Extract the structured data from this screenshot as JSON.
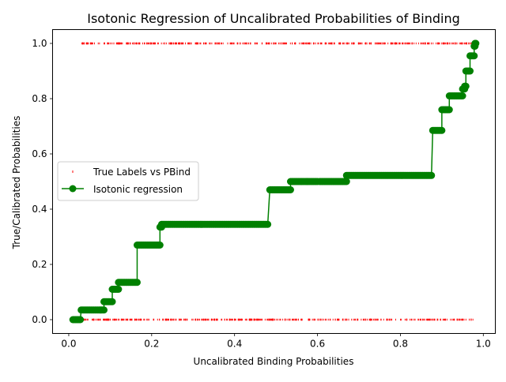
{
  "chart_data": {
    "type": "scatter",
    "title": "Isotonic Regression of Uncalibrated Probabilities of Binding",
    "xlabel": "Uncalibrated Binding Probabilities",
    "ylabel": "True/Calibrated Probabilities",
    "xlim": [
      -0.039,
      1.029
    ],
    "ylim": [
      -0.05,
      1.05
    ],
    "xticks": [
      0.0,
      0.2,
      0.4,
      0.6,
      0.8,
      1.0
    ],
    "xtick_labels": [
      "0.0",
      "0.2",
      "0.4",
      "0.6",
      "0.8",
      "1.0"
    ],
    "yticks": [
      0.0,
      0.2,
      0.4,
      0.6,
      0.8,
      1.0
    ],
    "ytick_labels": [
      "0.0",
      "0.2",
      "0.4",
      "0.6",
      "0.8",
      "1.0"
    ],
    "grid": false,
    "legend_position": "center-left",
    "series": [
      {
        "name": "True Labels vs PBind",
        "style": "scatter-markers",
        "color": "#ff0000",
        "x_range": [
          0.01,
          0.98
        ],
        "label_values": [
          0,
          1
        ]
      },
      {
        "name": "Isotonic regression",
        "style": "line-with-markers",
        "color": "#008000",
        "steps": [
          {
            "x": [
              0.01,
              0.028
            ],
            "y": 0.0
          },
          {
            "x": [
              0.03,
              0.085
            ],
            "y": 0.035
          },
          {
            "x": [
              0.085,
              0.105
            ],
            "y": 0.065
          },
          {
            "x": [
              0.105,
              0.12
            ],
            "y": 0.11
          },
          {
            "x": [
              0.12,
              0.165
            ],
            "y": 0.135
          },
          {
            "x": [
              0.165,
              0.22
            ],
            "y": 0.27
          },
          {
            "x": [
              0.22,
              0.224
            ],
            "y": 0.335
          },
          {
            "x": [
              0.224,
              0.48
            ],
            "y": 0.345
          },
          {
            "x": [
              0.485,
              0.535
            ],
            "y": 0.47
          },
          {
            "x": [
              0.535,
              0.575
            ],
            "y": 0.5
          },
          {
            "x": [
              0.575,
              0.6
            ],
            "y": 0.5
          },
          {
            "x": [
              0.605,
              0.67
            ],
            "y": 0.5
          },
          {
            "x": [
              0.67,
              0.875
            ],
            "y": 0.522
          },
          {
            "x": [
              0.878,
              0.9
            ],
            "y": 0.685
          },
          {
            "x": [
              0.9,
              0.918
            ],
            "y": 0.76
          },
          {
            "x": [
              0.918,
              0.95
            ],
            "y": 0.81
          },
          {
            "x": [
              0.95,
              0.955
            ],
            "y": 0.835
          },
          {
            "x": [
              0.955,
              0.958
            ],
            "y": 0.845
          },
          {
            "x": [
              0.958,
              0.968
            ],
            "y": 0.9
          },
          {
            "x": [
              0.968,
              0.978
            ],
            "y": 0.955
          },
          {
            "x": [
              0.978,
              0.98
            ],
            "y": 0.99
          },
          {
            "x": [
              0.98,
              0.982
            ],
            "y": 1.0
          }
        ]
      }
    ]
  }
}
